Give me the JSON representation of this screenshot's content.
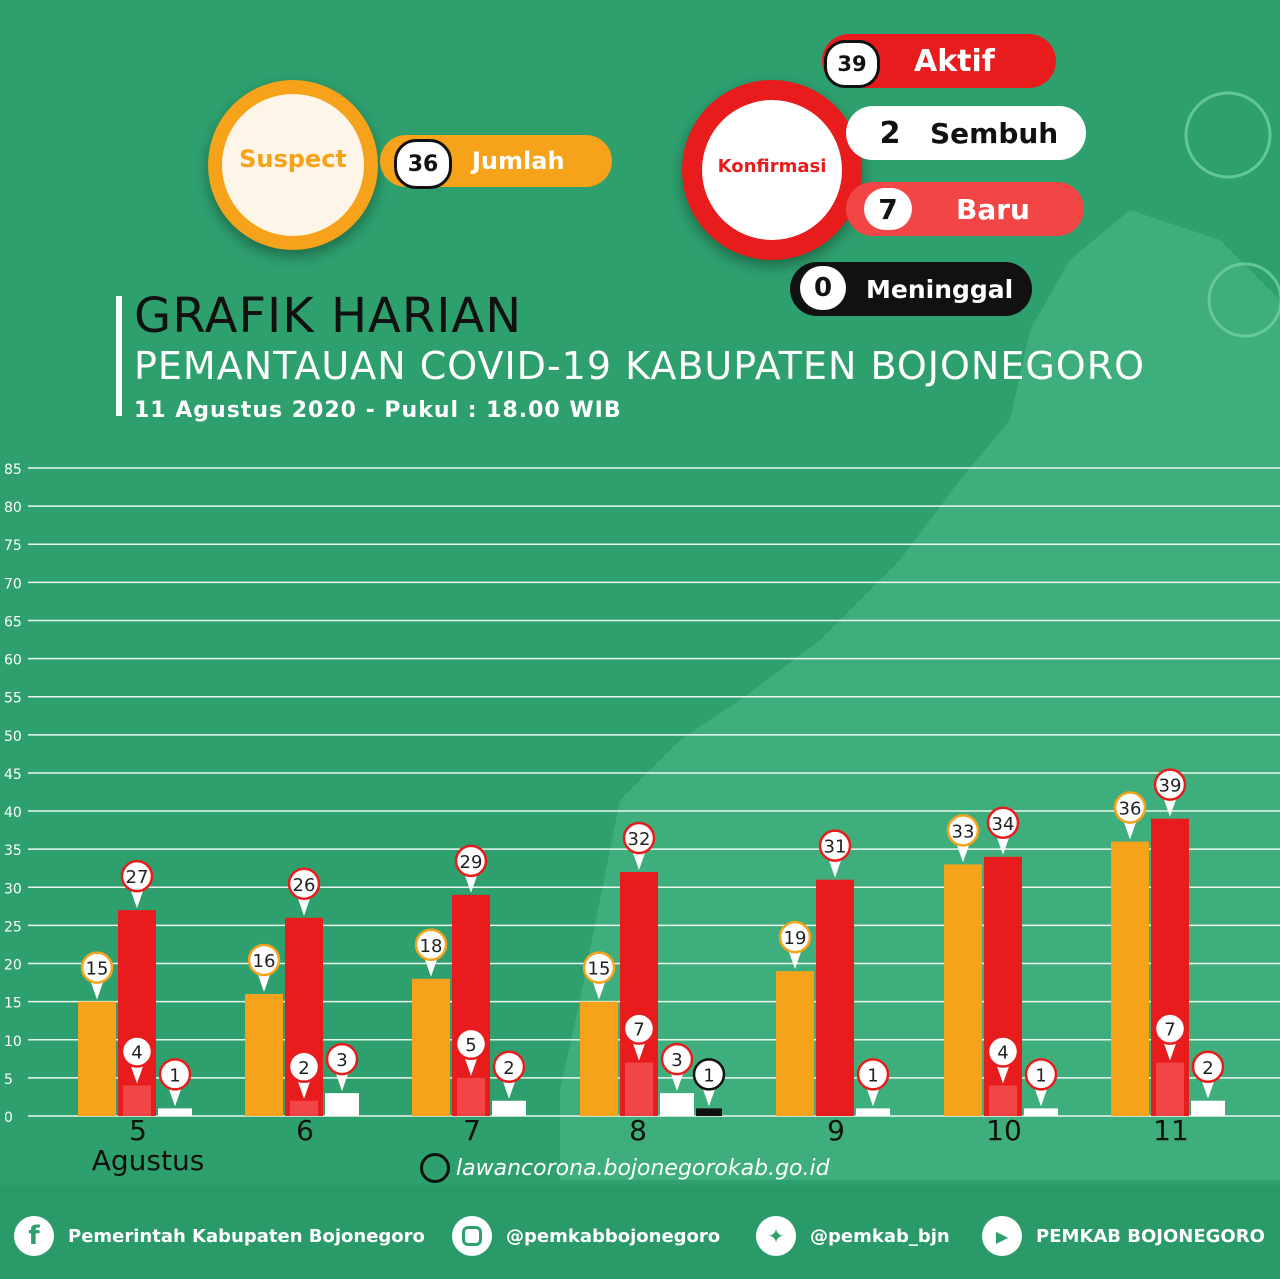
{
  "summary": {
    "suspect": {
      "label": "Suspect",
      "value": "36",
      "caption": "Jumlah"
    },
    "confirmed": {
      "label": "Konfirmasi",
      "aktif": {
        "value": "39",
        "label": "Aktif"
      },
      "sembuh": {
        "value": "2",
        "label": "Sembuh"
      },
      "baru": {
        "value": "7",
        "label": "Baru"
      },
      "meninggal": {
        "value": "0",
        "label": "Meninggal"
      }
    }
  },
  "header": {
    "title": "GRAFIK HARIAN",
    "subtitle": "PEMANTAUAN COVID-19 KABUPATEN BOJONEGORO",
    "date": "11 Agustus 2020 - Pukul : 18.00 WIB"
  },
  "chart_data": {
    "type": "bar",
    "categories": [
      "5",
      "6",
      "7",
      "8",
      "9",
      "10",
      "11"
    ],
    "month_label": "Agustus",
    "ylim": [
      0,
      85
    ],
    "yticks": [
      0,
      5,
      10,
      15,
      20,
      25,
      30,
      35,
      40,
      45,
      50,
      55,
      60,
      65,
      70,
      75,
      80,
      85
    ],
    "grid": true,
    "series": [
      {
        "key": "suspect",
        "color": "#f6a21b",
        "values": [
          15,
          16,
          18,
          15,
          19,
          33,
          36
        ]
      },
      {
        "key": "aktif",
        "color": "#e81c1c",
        "values": [
          27,
          26,
          29,
          32,
          31,
          34,
          39
        ]
      },
      {
        "key": "baru",
        "color": "#f24545",
        "values": [
          4,
          2,
          5,
          7,
          null,
          4,
          7
        ]
      },
      {
        "key": "sembuh",
        "color": "#ffffff",
        "values": [
          1,
          3,
          2,
          3,
          1,
          1,
          2
        ]
      },
      {
        "key": "meninggal",
        "color": "#111111",
        "values": [
          null,
          null,
          null,
          1,
          null,
          null,
          null
        ]
      }
    ]
  },
  "website": "lawancorona.bojonegorokab.go.id",
  "footer": {
    "facebook": "Pemerintah Kabupaten Bojonegoro",
    "instagram": "@pemkabbojonegoro",
    "twitter": "@pemkab_bjn",
    "youtube": "PEMKAB BOJONEGORO"
  },
  "colors": {
    "background": "#2ea06e",
    "suspect": "#f6a21b",
    "aktif": "#e81c1c",
    "baru": "#f24545",
    "sembuh": "#ffffff",
    "meninggal": "#111111"
  }
}
